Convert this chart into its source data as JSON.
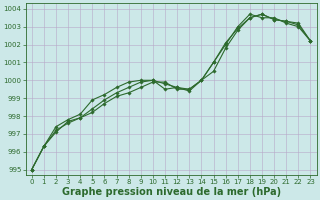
{
  "series": [
    {
      "x": [
        0,
        1,
        2,
        3,
        4,
        5,
        6,
        7,
        8,
        9,
        10,
        11,
        12,
        13,
        14,
        15,
        16,
        17,
        18,
        19,
        20,
        21,
        22,
        23
      ],
      "y": [
        995.0,
        996.3,
        997.1,
        997.7,
        997.9,
        998.2,
        998.7,
        999.1,
        999.3,
        999.6,
        999.9,
        999.9,
        999.5,
        999.5,
        1000.0,
        1000.5,
        1001.8,
        1002.8,
        1003.5,
        1003.7,
        1003.4,
        1003.3,
        1003.2,
        1002.2
      ],
      "color": "#2d6a2d",
      "linewidth": 0.8,
      "marker": "D",
      "markersize": 1.8
    },
    {
      "x": [
        0,
        1,
        2,
        3,
        4,
        5,
        6,
        7,
        8,
        9,
        10,
        11,
        12,
        13,
        14,
        15,
        16,
        17,
        18,
        19,
        20,
        21,
        22,
        23
      ],
      "y": [
        995.0,
        996.3,
        997.4,
        997.8,
        998.1,
        998.9,
        999.2,
        999.6,
        999.9,
        1000.0,
        1000.0,
        999.5,
        999.6,
        999.4,
        1000.0,
        1001.0,
        1002.0,
        1003.0,
        1003.7,
        1003.5,
        1003.5,
        1003.2,
        1003.0,
        1002.2
      ],
      "color": "#2d6a2d",
      "linewidth": 0.8,
      "marker": "D",
      "markersize": 1.8
    },
    {
      "x": [
        0,
        1,
        2,
        3,
        4,
        5,
        6,
        7,
        8,
        9,
        10,
        11,
        12,
        13,
        14,
        15,
        16,
        17,
        18,
        19,
        20,
        21,
        22,
        23
      ],
      "y": [
        995.0,
        996.3,
        997.2,
        997.6,
        997.9,
        998.4,
        998.9,
        999.3,
        999.6,
        999.9,
        1000.0,
        999.8,
        999.6,
        999.5,
        1000.0,
        1001.0,
        1002.1,
        1002.9,
        1003.5,
        1003.7,
        1003.4,
        1003.3,
        1003.1,
        1002.2
      ],
      "color": "#2d6a2d",
      "linewidth": 0.8,
      "marker": "D",
      "markersize": 1.8
    }
  ],
  "xlim": [
    -0.5,
    23.5
  ],
  "ylim": [
    994.7,
    1004.3
  ],
  "yticks": [
    995,
    996,
    997,
    998,
    999,
    1000,
    1001,
    1002,
    1003,
    1004
  ],
  "xticks": [
    0,
    1,
    2,
    3,
    4,
    5,
    6,
    7,
    8,
    9,
    10,
    11,
    12,
    13,
    14,
    15,
    16,
    17,
    18,
    19,
    20,
    21,
    22,
    23
  ],
  "xlabel": "Graphe pression niveau de la mer (hPa)",
  "background_color": "#cce8e8",
  "grid_color": "#b8a8c8",
  "tick_color": "#2d6a2d",
  "label_color": "#2d6a2d",
  "tick_fontsize": 5.0,
  "xlabel_fontsize": 7.0,
  "xlabel_bold": true
}
